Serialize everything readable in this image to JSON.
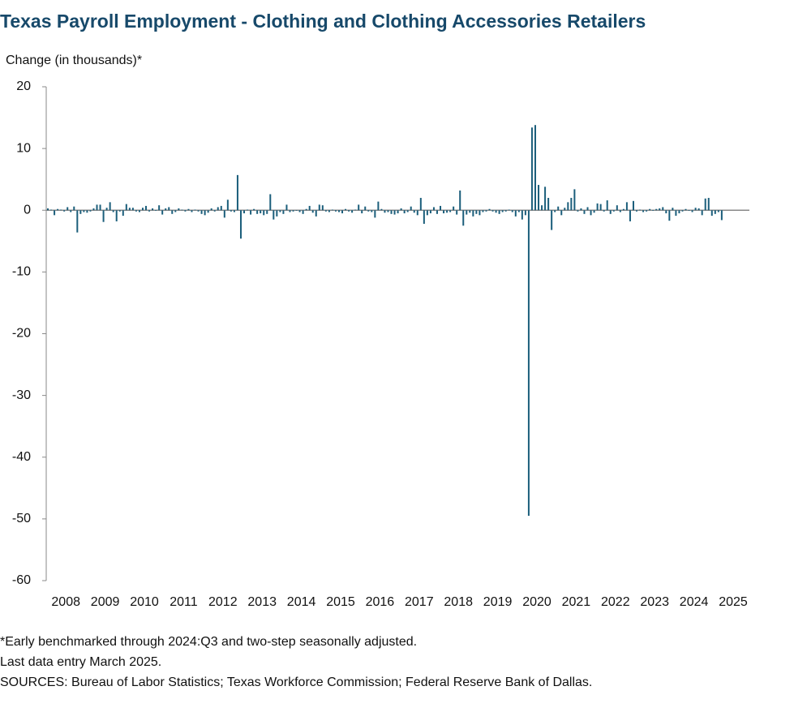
{
  "chart_data": {
    "type": "bar",
    "title": "Texas Payroll Employment - Clothing and Clothing Accessories Retailers",
    "y_label": "Change (in thousands)*",
    "notes": [
      "*Early benchmarked through 2024:Q3 and two-step seasonally adjusted.",
      "Last data entry March 2025.",
      "SOURCES: Bureau of Labor Statistics; Texas Workforce Commission; Federal Reserve Bank of Dallas."
    ],
    "categories": [
      "2008",
      null,
      null,
      null,
      null,
      null,
      null,
      null,
      null,
      null,
      null,
      null,
      "2009",
      null,
      null,
      null,
      null,
      null,
      null,
      null,
      null,
      null,
      null,
      null,
      "2010",
      null,
      null,
      null,
      null,
      null,
      null,
      null,
      null,
      null,
      null,
      null,
      "2011",
      null,
      null,
      null,
      null,
      null,
      null,
      null,
      null,
      null,
      null,
      null,
      "2012",
      null,
      null,
      null,
      null,
      null,
      null,
      null,
      null,
      null,
      null,
      null,
      "2013",
      null,
      null,
      null,
      null,
      null,
      null,
      null,
      null,
      null,
      null,
      null,
      "2014",
      null,
      null,
      null,
      null,
      null,
      null,
      null,
      null,
      null,
      null,
      null,
      "2015",
      null,
      null,
      null,
      null,
      null,
      null,
      null,
      null,
      null,
      null,
      null,
      "2016",
      null,
      null,
      null,
      null,
      null,
      null,
      null,
      null,
      null,
      null,
      null,
      "2017",
      null,
      null,
      null,
      null,
      null,
      null,
      null,
      null,
      null,
      null,
      null,
      "2018",
      null,
      null,
      null,
      null,
      null,
      null,
      null,
      null,
      null,
      null,
      null,
      "2019",
      null,
      null,
      null,
      null,
      null,
      null,
      null,
      null,
      null,
      null,
      null,
      "2020",
      null,
      null,
      null,
      null,
      null,
      null,
      null,
      null,
      null,
      null,
      null,
      "2021",
      null,
      null,
      null,
      null,
      null,
      null,
      null,
      null,
      null,
      null,
      null,
      "2022",
      null,
      null,
      null,
      null,
      null,
      null,
      null,
      null,
      null,
      null,
      null,
      "2023",
      null,
      null,
      null,
      null,
      null,
      null,
      null,
      null,
      null,
      null,
      null,
      "2024",
      null,
      null,
      null,
      null,
      null,
      null,
      null,
      null,
      null,
      null,
      null,
      "2025",
      null,
      null
    ],
    "values": [
      0.3,
      0.1,
      -0.8,
      0.2,
      0.1,
      -0.2,
      0.5,
      -0.3,
      0.6,
      -3.6,
      -0.6,
      -0.3,
      -0.4,
      -0.2,
      0.3,
      0.9,
      0.9,
      -1.9,
      0.4,
      1.3,
      -0.3,
      -1.8,
      -0.2,
      -0.9,
      1.0,
      0.4,
      0.4,
      -0.2,
      -0.3,
      0.4,
      0.7,
      -0.2,
      0.3,
      -0.1,
      0.8,
      -0.7,
      0.3,
      0.5,
      -0.6,
      -0.3,
      0.3,
      0.1,
      -0.2,
      0.2,
      -0.3,
      0.1,
      -0.2,
      -0.6,
      -0.8,
      -0.4,
      0.3,
      -0.2,
      0.5,
      0.7,
      -1.2,
      1.7,
      -0.2,
      -0.3,
      5.7,
      -4.6,
      -0.5,
      0.1,
      -0.7,
      0.2,
      -0.6,
      -0.5,
      -0.8,
      -0.6,
      2.6,
      -1.5,
      -1.0,
      -0.3,
      -0.6,
      0.9,
      -0.3,
      -0.2,
      -0.1,
      -0.3,
      -0.6,
      0.2,
      0.7,
      -0.4,
      -1.0,
      0.9,
      0.8,
      -0.2,
      -0.3,
      0.1,
      -0.2,
      -0.3,
      -0.5,
      0.2,
      -0.2,
      -0.4,
      0.1,
      0.9,
      -0.5,
      0.6,
      -0.2,
      -0.3,
      -1.2,
      1.4,
      0.2,
      -0.4,
      -0.3,
      -0.6,
      -0.7,
      -0.5,
      0.3,
      -0.5,
      -0.3,
      0.6,
      -0.4,
      -0.8,
      2.0,
      -2.2,
      -0.8,
      -0.5,
      0.5,
      -0.6,
      0.7,
      -0.5,
      -0.4,
      -0.3,
      0.6,
      -0.7,
      3.2,
      -2.5,
      -0.7,
      -0.4,
      -1.0,
      -0.6,
      -0.8,
      -0.3,
      -0.2,
      0.2,
      -0.2,
      -0.4,
      -0.6,
      -0.3,
      -0.2,
      0.1,
      -0.3,
      -1.0,
      -0.3,
      -1.5,
      -0.8,
      -49.5,
      13.4,
      13.8,
      4.1,
      0.8,
      3.8,
      2.0,
      -3.2,
      -0.3,
      0.6,
      -0.8,
      0.4,
      1.3,
      2.0,
      3.4,
      -0.2,
      0.3,
      -0.6,
      0.5,
      -0.8,
      -0.4,
      1.1,
      1.0,
      -0.2,
      1.6,
      -0.6,
      -0.2,
      0.8,
      -0.3,
      0.2,
      1.3,
      -1.8,
      1.5,
      -0.2,
      0.1,
      -0.3,
      -0.2,
      0.2,
      -0.1,
      0.2,
      0.3,
      0.5,
      -0.5,
      -1.7,
      0.4,
      -0.9,
      -0.5,
      -0.2,
      0.2,
      -0.1,
      -0.3,
      0.4,
      0.3,
      -0.8,
      1.9,
      2.0,
      -0.9,
      -0.6,
      -0.3,
      -1.6
    ],
    "color": "#1b5e7b",
    "ylim": [
      -60,
      20
    ],
    "yticks": [
      20,
      10,
      0,
      -10,
      -20,
      -30,
      -40,
      -50,
      -60
    ],
    "grid": false
  }
}
